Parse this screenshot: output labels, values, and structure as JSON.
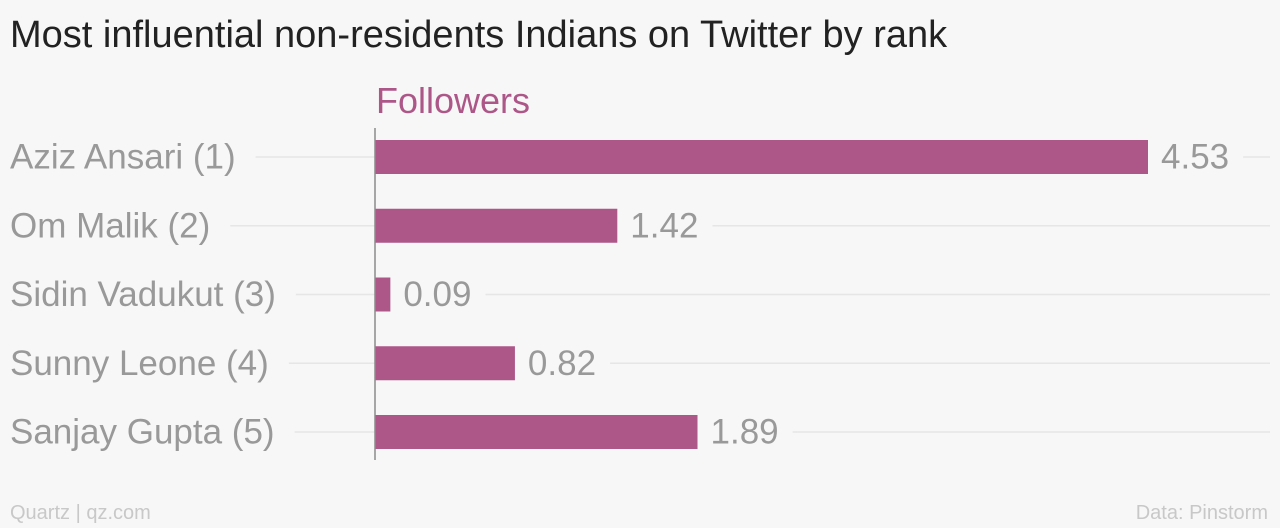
{
  "colors": {
    "background": "#f7f7f7",
    "bar": "#ad5789",
    "title": "#222222",
    "label": "#999999",
    "gridline": "#e6e6e6",
    "axis": "#8c8c8c",
    "footer": "#c8c8c8"
  },
  "footer": {
    "source_left": "Quartz | qz.com",
    "source_right": "Data: Pinstorm"
  },
  "chart_data": {
    "type": "bar",
    "orientation": "horizontal",
    "title": "Most influential non-residents Indians on Twitter by rank",
    "series_label": "Followers",
    "categories": [
      "Aziz Ansari (1)",
      "Om Malik (2)",
      "Sidin Vadukut (3)",
      "Sunny Leone (4)",
      "Sanjay Gupta (5)"
    ],
    "values": [
      4.53,
      1.42,
      0.09,
      0.82,
      1.89
    ],
    "value_labels": [
      "4.53",
      "1.42",
      "0.09",
      "0.82",
      "1.89"
    ],
    "xlim": [
      0,
      4.53
    ],
    "grid": true,
    "legend": "none"
  }
}
